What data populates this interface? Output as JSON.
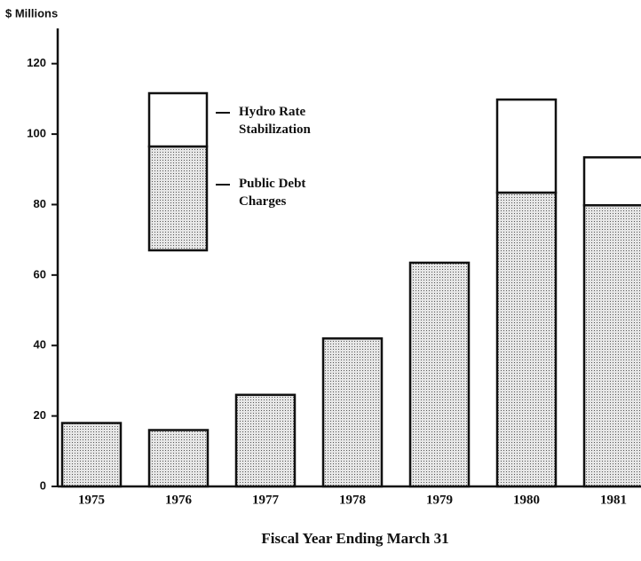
{
  "chart_data": {
    "type": "stacked_bar",
    "y_axis_label": "$ Millions",
    "x_axis_label": "Fiscal Year Ending March 31",
    "categories": [
      "1975",
      "1976",
      "1977",
      "1978",
      "1979",
      "1980",
      "1981"
    ],
    "series": [
      {
        "name": "Public Debt Charges",
        "color": "#d4d4d4",
        "values": [
          18,
          16,
          26,
          42,
          63.5,
          83.4,
          79.8
        ]
      },
      {
        "name": "Hydro Rate Stabilization",
        "color": "#ffffff",
        "values": [
          0,
          0,
          0,
          0,
          0,
          26.4,
          13.6
        ]
      }
    ],
    "ylim": [
      0,
      130
    ],
    "yticks": [
      0,
      20,
      40,
      60,
      80,
      100,
      120
    ]
  }
}
